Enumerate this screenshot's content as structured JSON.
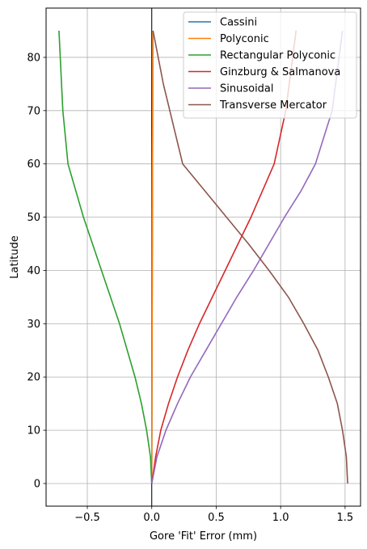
{
  "chart_data": {
    "type": "line",
    "title": "",
    "xlabel": "Gore 'Fit' Error (mm)",
    "ylabel": "Latitude",
    "xlim": [
      -0.82,
      1.62
    ],
    "ylim": [
      -4.25,
      89.25
    ],
    "xticks": [
      -0.5,
      0.0,
      0.5,
      1.0,
      1.5
    ],
    "xtick_labels": [
      "−0.5",
      "0.0",
      "0.5",
      "1.0",
      "1.5"
    ],
    "yticks": [
      0,
      10,
      20,
      30,
      40,
      50,
      60,
      70,
      80
    ],
    "ytick_labels": [
      "0",
      "10",
      "20",
      "30",
      "40",
      "50",
      "60",
      "70",
      "80"
    ],
    "grid": true,
    "vertical_reference_line": 0,
    "legend_position": "top-right",
    "series": [
      {
        "name": "Cassini",
        "color": "#1f77b4",
        "x": [
          0,
          0.001,
          0.002,
          0.003,
          0.004,
          0.005,
          0.006,
          0.007,
          0.008,
          0.009
        ],
        "y": [
          0,
          10,
          20,
          30,
          40,
          50,
          60,
          70,
          80,
          85
        ]
      },
      {
        "name": "Polyconic",
        "color": "#ff7f0e",
        "x": [
          0,
          0.001,
          0.002,
          0.003,
          0.004,
          0.005,
          0.006,
          0.007,
          0.008,
          0.009
        ],
        "y": [
          0,
          10,
          20,
          30,
          40,
          50,
          60,
          70,
          80,
          85
        ]
      },
      {
        "name": "Rectangular Polyconic",
        "color": "#2ca02c",
        "x": [
          0,
          -0.01,
          -0.04,
          -0.08,
          -0.13,
          -0.19,
          -0.25,
          -0.32,
          -0.39,
          -0.46,
          -0.53,
          -0.59,
          -0.65,
          -0.69,
          -0.72
        ],
        "y": [
          0,
          5,
          10,
          15,
          20,
          25,
          30,
          35,
          40,
          45,
          50,
          55,
          60,
          70,
          85
        ]
      },
      {
        "name": "Ginzburg & Salmanova",
        "color": "#d62728",
        "x": [
          0,
          0.03,
          0.07,
          0.13,
          0.2,
          0.28,
          0.37,
          0.47,
          0.57,
          0.67,
          0.77,
          0.86,
          0.95,
          1.04,
          1.12
        ],
        "y": [
          0,
          5,
          10,
          15,
          20,
          25,
          30,
          35,
          40,
          45,
          50,
          55,
          60,
          70,
          85
        ]
      },
      {
        "name": "Sinusoidal",
        "color": "#9467bd",
        "x": [
          0,
          0.04,
          0.11,
          0.2,
          0.3,
          0.42,
          0.54,
          0.66,
          0.79,
          0.91,
          1.03,
          1.16,
          1.27,
          1.4,
          1.48
        ],
        "y": [
          0,
          5,
          10,
          15,
          20,
          25,
          30,
          35,
          40,
          45,
          50,
          55,
          60,
          70,
          85
        ]
      },
      {
        "name": "Transverse Mercator",
        "color": "#8c564b",
        "x": [
          1.52,
          1.51,
          1.48,
          1.44,
          1.37,
          1.29,
          1.18,
          1.06,
          0.91,
          0.75,
          0.58,
          0.41,
          0.24,
          0.09,
          0.01
        ],
        "y": [
          0,
          5,
          10,
          15,
          20,
          25,
          30,
          35,
          40,
          45,
          50,
          55,
          60,
          75,
          85
        ]
      }
    ]
  }
}
